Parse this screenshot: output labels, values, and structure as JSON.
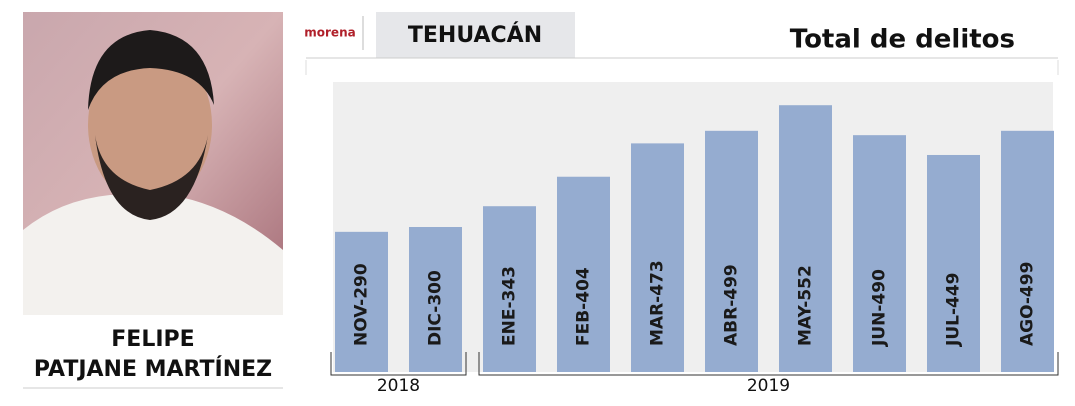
{
  "header": {
    "logo": "morena",
    "city": "TEHUACÁN"
  },
  "person": {
    "name_lines": [
      "FELIPE",
      "PATJANE MARTÍNEZ"
    ]
  },
  "chart_data": {
    "type": "bar",
    "title": "Total de delitos",
    "values": [
      290,
      300,
      343,
      404,
      473,
      499,
      552,
      490,
      449,
      499
    ],
    "value_labels": [
      "NOV-290",
      "DIC-300",
      "ENE-343",
      "FEB-404",
      "MAR-473",
      "ABR-499",
      "MAY-552",
      "JUN-490",
      "JUL-449",
      "AGO-499"
    ],
    "color": "#95acd0",
    "ylim": [
      0,
      600
    ],
    "groups": [
      "2018",
      "2019"
    ]
  }
}
